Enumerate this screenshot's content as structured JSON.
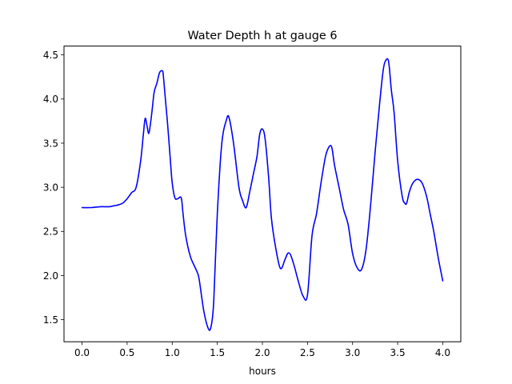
{
  "chart_data": {
    "type": "line",
    "title": "Water Depth h at gauge 6",
    "xlabel": "hours",
    "ylabel": "",
    "xlim": [
      -0.2,
      4.2
    ],
    "ylim": [
      1.25,
      4.6
    ],
    "xticks": [
      0.0,
      0.5,
      1.0,
      1.5,
      2.0,
      2.5,
      3.0,
      3.5,
      4.0
    ],
    "xtick_labels": [
      "0.0",
      "0.5",
      "1.0",
      "1.5",
      "2.0",
      "2.5",
      "3.0",
      "3.5",
      "4.0"
    ],
    "yticks": [
      1.5,
      2.0,
      2.5,
      3.0,
      3.5,
      4.0,
      4.5
    ],
    "ytick_labels": [
      "1.5",
      "2.0",
      "2.5",
      "3.0",
      "3.5",
      "4.0",
      "4.5"
    ],
    "grid": false,
    "line_color": "#0000ff",
    "series": [
      {
        "x": [
          0.0,
          0.1,
          0.2,
          0.3,
          0.35,
          0.4,
          0.45,
          0.5,
          0.55,
          0.6,
          0.65,
          0.68,
          0.7,
          0.72,
          0.74,
          0.76,
          0.78,
          0.8,
          0.83,
          0.86,
          0.89,
          0.9,
          0.92,
          0.95,
          0.98,
          1.0,
          1.03,
          1.06,
          1.1,
          1.12,
          1.15,
          1.2,
          1.25,
          1.28,
          1.3,
          1.35,
          1.4,
          1.43,
          1.46,
          1.5,
          1.55,
          1.6,
          1.63,
          1.68,
          1.74,
          1.78,
          1.82,
          1.86,
          1.9,
          1.94,
          1.97,
          2.0,
          2.03,
          2.07,
          2.1,
          2.15,
          2.2,
          2.25,
          2.28,
          2.31,
          2.35,
          2.4,
          2.45,
          2.5,
          2.55,
          2.6,
          2.65,
          2.7,
          2.74,
          2.77,
          2.8,
          2.85,
          2.9,
          2.95,
          3.0,
          3.05,
          3.1,
          3.15,
          3.2,
          3.25,
          3.3,
          3.34,
          3.37,
          3.4,
          3.43,
          3.46,
          3.5,
          3.55,
          3.58,
          3.6,
          3.63,
          3.67,
          3.72,
          3.77,
          3.82,
          3.86,
          3.9,
          3.95,
          4.0
        ],
        "y": [
          2.77,
          2.77,
          2.78,
          2.78,
          2.79,
          2.8,
          2.82,
          2.87,
          2.94,
          3.0,
          3.3,
          3.6,
          3.78,
          3.7,
          3.61,
          3.73,
          3.9,
          4.08,
          4.18,
          4.3,
          4.32,
          4.28,
          4.05,
          3.7,
          3.3,
          3.05,
          2.88,
          2.87,
          2.88,
          2.7,
          2.45,
          2.22,
          2.1,
          2.03,
          1.95,
          1.6,
          1.4,
          1.42,
          1.7,
          2.7,
          3.5,
          3.76,
          3.79,
          3.5,
          3.0,
          2.85,
          2.77,
          2.95,
          3.15,
          3.35,
          3.6,
          3.66,
          3.55,
          3.1,
          2.65,
          2.3,
          2.08,
          2.18,
          2.25,
          2.24,
          2.12,
          1.93,
          1.77,
          1.78,
          2.45,
          2.7,
          3.05,
          3.35,
          3.46,
          3.45,
          3.25,
          3.0,
          2.75,
          2.58,
          2.25,
          2.09,
          2.07,
          2.3,
          2.8,
          3.4,
          3.95,
          4.33,
          4.44,
          4.42,
          4.1,
          3.85,
          3.3,
          2.9,
          2.82,
          2.82,
          2.95,
          3.05,
          3.09,
          3.05,
          2.9,
          2.7,
          2.5,
          2.2,
          1.94
        ]
      }
    ]
  }
}
